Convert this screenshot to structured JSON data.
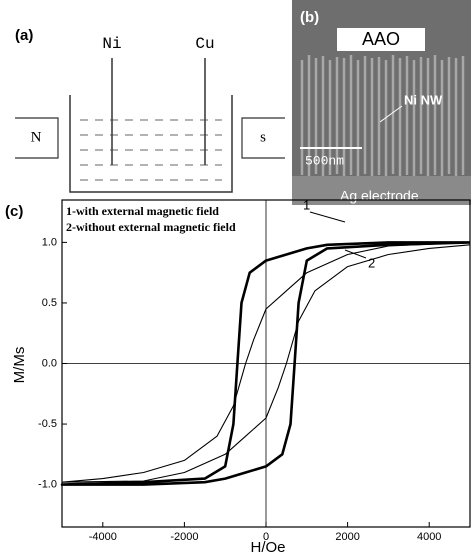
{
  "diagram": {
    "label": "(a)",
    "electrodes": [
      "Ni",
      "Cu"
    ],
    "magnets": [
      "N",
      "s"
    ]
  },
  "image": {
    "label": "(b)",
    "top": "AAO",
    "wire": "Ni NW",
    "scale": "500nm",
    "bottom": "Ag electrode"
  },
  "chart_data": {
    "type": "line",
    "panel_label": "(c)",
    "x_label": "H/Oe",
    "y_label": "M/Ms",
    "xlim": [
      -5000,
      5000
    ],
    "ylim": [
      -1.35,
      1.35
    ],
    "xticks": [
      -4000,
      -2000,
      0,
      2000,
      4000
    ],
    "yticks": [
      {
        "value": -1.0,
        "label": "-1.0"
      },
      -0.5,
      {
        "value": 0.0,
        "label": "0.0"
      },
      0.5,
      {
        "value": 1.0,
        "label": "1.0"
      }
    ],
    "series": [
      {
        "name": "1-with external magnetic field",
        "color": "#000000",
        "curve_label": "1",
        "x": [
          5000,
          3000,
          1500,
          1000,
          500,
          0,
          -400,
          -600,
          -700,
          -800,
          -1000,
          -1500,
          -3000,
          -5000,
          -3000,
          -1500,
          -1000,
          -500,
          0,
          400,
          600,
          700,
          800,
          1000,
          1500,
          3000,
          5000
        ],
        "values": [
          1.0,
          1.0,
          0.98,
          0.95,
          0.9,
          0.85,
          0.75,
          0.5,
          0,
          -0.5,
          -0.85,
          -0.95,
          -0.98,
          -1.0,
          -1.0,
          -0.98,
          -0.95,
          -0.9,
          -0.85,
          -0.75,
          -0.5,
          0,
          0.5,
          0.85,
          0.95,
          0.98,
          1.0
        ]
      },
      {
        "name": "2-without external magnetic field",
        "color": "#000000",
        "curve_label": "2",
        "x": [
          5000,
          3000,
          2000,
          1000,
          500,
          0,
          -300,
          -500,
          -800,
          -1200,
          -2000,
          -3000,
          -4000,
          -5000,
          -3000,
          -2000,
          -1000,
          -500,
          0,
          300,
          500,
          800,
          1200,
          2000,
          3000,
          4000,
          5000
        ],
        "values": [
          1.0,
          0.97,
          0.9,
          0.75,
          0.6,
          0.45,
          0.2,
          0,
          -0.35,
          -0.6,
          -0.8,
          -0.9,
          -0.95,
          -0.98,
          -0.97,
          -0.9,
          -0.75,
          -0.6,
          -0.45,
          -0.2,
          0,
          0.35,
          0.6,
          0.8,
          0.9,
          0.95,
          0.98
        ]
      }
    ]
  }
}
